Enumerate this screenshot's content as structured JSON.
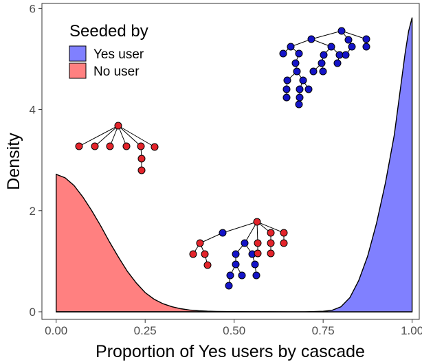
{
  "chart_data": {
    "type": "area",
    "xlabel": "Proportion of Yes users by cascade",
    "ylabel": "Density",
    "xlim": [
      -0.04,
      1.02
    ],
    "ylim": [
      -0.15,
      6.1
    ],
    "x_ticks": [
      0.0,
      0.25,
      0.5,
      0.75,
      1.0
    ],
    "x_tick_labels": [
      "0.00",
      "0.25",
      "0.50",
      "0.75",
      "1.00"
    ],
    "y_ticks": [
      0,
      2,
      4,
      6
    ],
    "y_tick_labels": [
      "0",
      "2",
      "4",
      "6"
    ],
    "grid": false,
    "legend": {
      "title": "Seeded by",
      "position": "top-left",
      "entries": [
        {
          "label": "Yes user",
          "color": "#8080ff"
        },
        {
          "label": "No user",
          "color": "#ff8080"
        }
      ]
    },
    "series": [
      {
        "name": "No user",
        "color": "#ff8080",
        "x": [
          0.0,
          0.025,
          0.05,
          0.075,
          0.1,
          0.125,
          0.15,
          0.175,
          0.2,
          0.225,
          0.25,
          0.275,
          0.3,
          0.325,
          0.35,
          0.375,
          0.4,
          0.425,
          0.45,
          0.5,
          0.55,
          0.6,
          0.65,
          0.7,
          0.75,
          0.8,
          0.85,
          0.9,
          0.95,
          1.0
        ],
        "y": [
          2.72,
          2.65,
          2.5,
          2.27,
          2.0,
          1.7,
          1.38,
          1.08,
          0.8,
          0.57,
          0.38,
          0.25,
          0.16,
          0.1,
          0.06,
          0.035,
          0.02,
          0.012,
          0.008,
          0.003,
          0.002,
          0.002,
          0.001,
          0.0,
          0.0,
          0.0,
          0.0,
          0.0,
          0.0,
          0.0
        ]
      },
      {
        "name": "Yes user",
        "color": "#8080ff",
        "x": [
          0.0,
          0.5,
          0.7,
          0.75,
          0.775,
          0.8,
          0.825,
          0.85,
          0.875,
          0.9,
          0.925,
          0.95,
          0.965,
          0.98,
          0.99,
          1.0
        ],
        "y": [
          0.0,
          0.0,
          0.0,
          0.01,
          0.03,
          0.1,
          0.28,
          0.62,
          1.1,
          1.75,
          2.55,
          3.5,
          4.3,
          5.1,
          5.55,
          5.82
        ]
      }
    ]
  },
  "colors": {
    "node_red": "#e3242b",
    "node_blue": "#1414c8",
    "curve_line": "#000000"
  }
}
